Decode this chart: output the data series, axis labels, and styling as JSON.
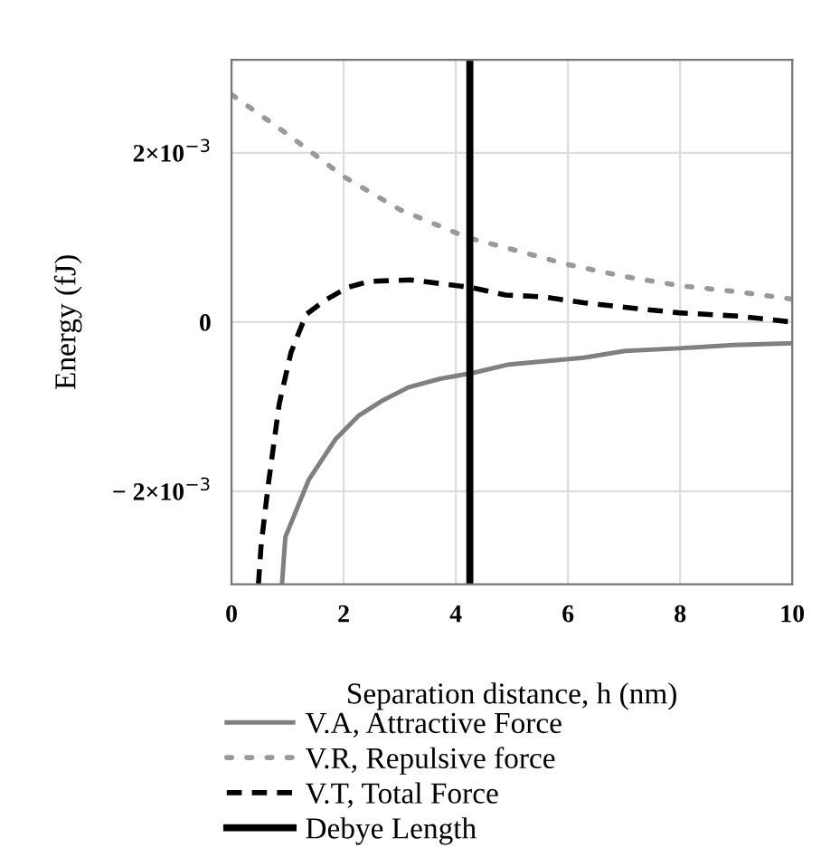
{
  "chart_data": {
    "type": "line",
    "xlabel": "Separation distance, h (nm)",
    "ylabel": "Energy (fJ)",
    "xlim": [
      0,
      10
    ],
    "ylim": [
      -0.0031,
      0.0031
    ],
    "xticks": [
      0,
      2,
      4,
      6,
      8,
      10
    ],
    "yticks": [
      {
        "value": -0.002,
        "label": "− 2×10$^{−3}$"
      },
      {
        "value": 0,
        "label": "0"
      },
      {
        "value": 0.002,
        "label": "2×10$^{−3}$"
      }
    ],
    "grid": true,
    "legend": "bottom",
    "marker": "none",
    "series": [
      {
        "name": "V.A, Attractive Force",
        "color": "#808080",
        "line_style": "solid",
        "x": [
          0.9,
          0.96,
          1.38,
          1.86,
          2.26,
          2.71,
          3.16,
          3.72,
          4.31,
          4.95,
          6.28,
          7.02,
          7.98,
          8.94,
          10
        ],
        "values": [
          -0.0031,
          -0.00254,
          -0.00186,
          -0.00138,
          -0.00111,
          -0.00092,
          -0.00077,
          -0.00067,
          -0.0006,
          -0.0005,
          -0.00042,
          -0.00034,
          -0.00031,
          -0.00027,
          -0.00025
        ]
      },
      {
        "name": "V.R, Repulsive force",
        "color": "#999999",
        "line_style": "dotted",
        "x": [
          0,
          1,
          2,
          3,
          4.2,
          5,
          6,
          7,
          8,
          9,
          10
        ],
        "values": [
          0.00269,
          0.00222,
          0.00172,
          0.00133,
          0.001,
          0.00086,
          0.00068,
          0.00054,
          0.00043,
          0.00036,
          0.00027
        ]
      },
      {
        "name": "V.T, Total Force",
        "color": "#000000",
        "line_style": "dashed",
        "x": [
          0.48,
          0.53,
          0.66,
          0.85,
          1.06,
          1.33,
          1.65,
          2.07,
          2.45,
          3.19,
          4.26,
          4.89,
          5.53,
          6.28,
          7.23,
          7.98,
          9.04,
          10
        ],
        "values": [
          -0.0031,
          -0.00262,
          -0.0019,
          -0.00097,
          -0.00036,
          9e-05,
          0.00025,
          0.00041,
          0.00048,
          0.0005,
          0.00041,
          0.00032,
          0.0003,
          0.00023,
          0.00016,
          0.00011,
          7e-05,
          0
        ]
      }
    ],
    "ref_lines": [
      {
        "axis": "x",
        "value": 4.25,
        "label": "Debye Length",
        "color": "#000000",
        "line_style": "solid"
      }
    ]
  }
}
